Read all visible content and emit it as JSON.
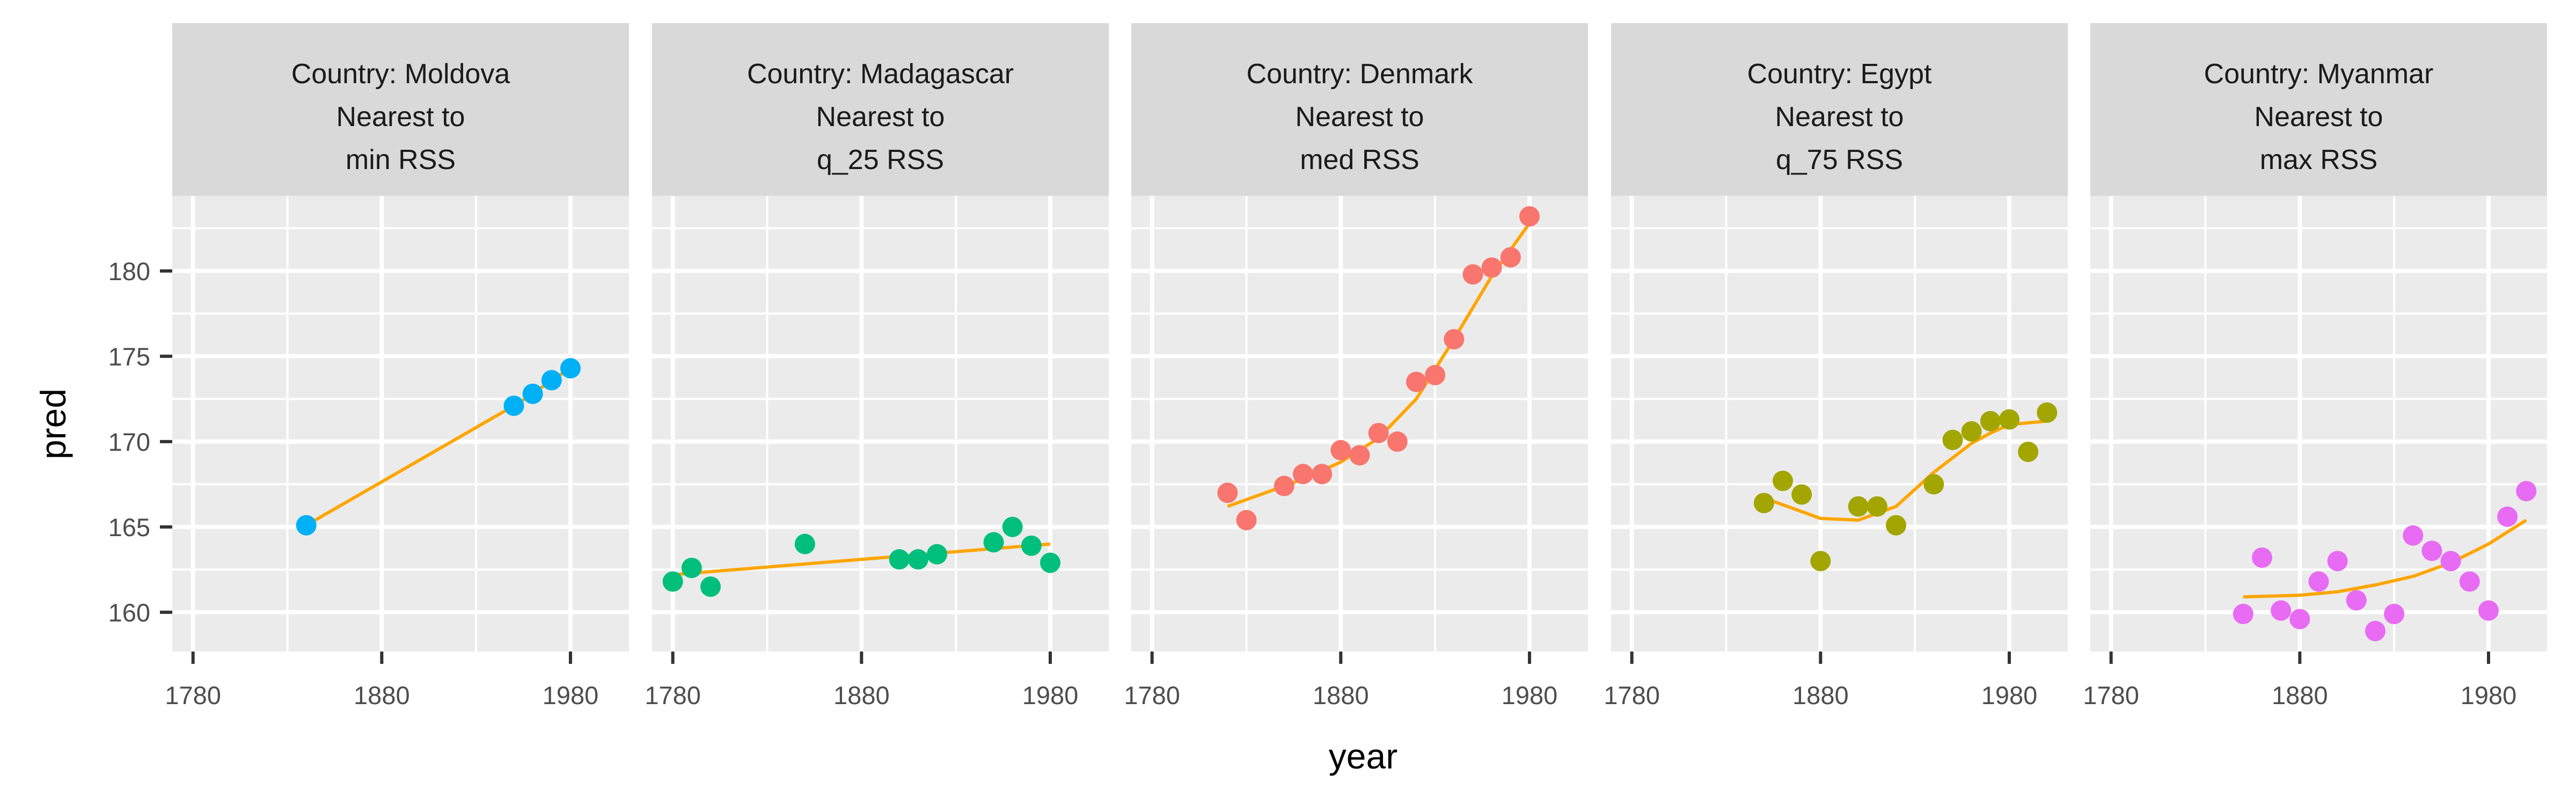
{
  "chart_data": {
    "type": "scatter",
    "layout": "faceted, 5 panels in one row, shared axes",
    "xlabel": "year",
    "ylabel": "pred",
    "xlim": [
      1769,
      2011
    ],
    "ylim": [
      157.7,
      184.4
    ],
    "x_ticks": [
      1780,
      1880,
      1980
    ],
    "x_tick_labels": [
      "1780",
      "1880",
      "1980"
    ],
    "y_ticks": [
      160,
      165,
      170,
      175,
      180
    ],
    "y_tick_labels": [
      "160",
      "165",
      "170",
      "175",
      "180"
    ],
    "grid": true,
    "legend": "none",
    "line_color": "#FFA500",
    "panel_background": "#EBEBEB",
    "strip_background": "#D9D9D9",
    "panels": [
      {
        "strip": [
          "Country: Moldova",
          "Nearest to",
          "min RSS"
        ],
        "color": "#00B0F6",
        "points": {
          "x": [
            1840,
            1950,
            1960,
            1970,
            1980
          ],
          "y": [
            165.1,
            172.1,
            172.8,
            173.6,
            174.3
          ]
        },
        "fit": {
          "x": [
            1840,
            1950,
            1960,
            1970,
            1980
          ],
          "y": [
            165.1,
            172.1,
            172.8,
            173.6,
            174.3
          ]
        }
      },
      {
        "strip": [
          "Country: Madagascar",
          "Nearest to",
          "q_25 RSS"
        ],
        "color": "#00BF7D",
        "points": {
          "x": [
            1780,
            1790,
            1800,
            1850,
            1900,
            1910,
            1920,
            1950,
            1960,
            1970,
            1980
          ],
          "y": [
            161.8,
            162.6,
            161.5,
            164.0,
            163.1,
            163.1,
            163.4,
            164.1,
            165.0,
            163.9,
            162.9
          ]
        },
        "fit": {
          "x": [
            1780,
            1980
          ],
          "y": [
            162.2,
            164.0
          ]
        }
      },
      {
        "strip": [
          "Country: Denmark",
          "Nearest to",
          "med RSS"
        ],
        "color": "#F8766D",
        "points": {
          "x": [
            1820,
            1830,
            1850,
            1860,
            1870,
            1880,
            1890,
            1900,
            1910,
            1920,
            1930,
            1940,
            1950,
            1960,
            1970,
            1980
          ],
          "y": [
            167.0,
            165.4,
            167.4,
            168.1,
            168.1,
            169.5,
            169.2,
            170.5,
            170.0,
            173.5,
            173.9,
            176.0,
            179.8,
            180.2,
            180.8,
            183.2
          ]
        },
        "fit": {
          "x": [
            1820,
            1840,
            1860,
            1880,
            1900,
            1920,
            1940,
            1960,
            1980
          ],
          "y": [
            166.2,
            167.0,
            167.8,
            168.8,
            170.2,
            172.5,
            176.0,
            179.7,
            182.8
          ]
        }
      },
      {
        "strip": [
          "Country: Egypt",
          "Nearest to",
          "q_75 RSS"
        ],
        "color": "#A3A500",
        "points": {
          "x": [
            1850,
            1860,
            1870,
            1880,
            1900,
            1910,
            1920,
            1940,
            1950,
            1960,
            1970,
            1980,
            1990,
            2000
          ],
          "y": [
            166.4,
            167.7,
            166.9,
            163.0,
            166.2,
            166.2,
            165.1,
            167.5,
            170.1,
            170.6,
            171.2,
            171.3,
            169.4,
            171.7
          ]
        },
        "fit": {
          "x": [
            1850,
            1880,
            1900,
            1920,
            1940,
            1960,
            1970,
            1980,
            2000
          ],
          "y": [
            166.7,
            165.5,
            165.4,
            166.2,
            168.2,
            169.9,
            170.5,
            171.0,
            171.2
          ]
        }
      },
      {
        "strip": [
          "Country: Myanmar",
          "Nearest to",
          "max RSS"
        ],
        "color": "#E76BF3",
        "points": {
          "x": [
            1850,
            1860,
            1870,
            1880,
            1890,
            1900,
            1910,
            1920,
            1930,
            1940,
            1950,
            1960,
            1970,
            1980,
            1990,
            2000
          ],
          "y": [
            159.9,
            163.2,
            160.1,
            159.6,
            161.8,
            163.0,
            160.7,
            158.9,
            159.9,
            164.5,
            163.6,
            163.0,
            161.8,
            160.1,
            165.6,
            167.1
          ]
        },
        "fit": {
          "x": [
            1850,
            1880,
            1900,
            1920,
            1940,
            1960,
            1980,
            2000
          ],
          "y": [
            160.9,
            161.0,
            161.2,
            161.6,
            162.1,
            162.9,
            164.0,
            165.4
          ]
        }
      }
    ]
  }
}
